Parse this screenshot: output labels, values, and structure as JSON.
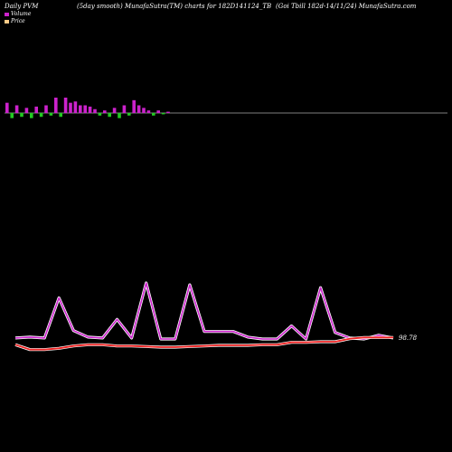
{
  "header": {
    "left": "Daily PVM",
    "middle": "(5day smooth) MunafaSutra(TM) charts for 182D141124_TB",
    "right": "(Goi  Tbill 182d-14/11/24) MunafaSutra.com"
  },
  "legend": {
    "items": [
      {
        "label": "Volume",
        "color": "#cc22cc"
      },
      {
        "label": "Price",
        "color": "#ffcc88"
      }
    ]
  },
  "colors": {
    "background": "#000000",
    "volume_up": "#cc22cc",
    "volume_down": "#22cc22",
    "volume_line": "#cc22cc",
    "price_line": "#ee2222",
    "axis_line": "#ffffff"
  },
  "price_label": "98.78",
  "chart_data": [
    {
      "type": "bar",
      "name": "volume-bars",
      "values": [
        8,
        -4,
        6,
        -3,
        4,
        -4,
        5,
        -3,
        6,
        -2,
        12,
        -3,
        12,
        8,
        9,
        6,
        6,
        5,
        3,
        -2,
        2,
        -3,
        4,
        -4,
        6,
        -2,
        10,
        6,
        4,
        2,
        -2,
        2,
        -1,
        1
      ],
      "ylim": [
        -12,
        12
      ]
    },
    {
      "type": "line",
      "series": [
        {
          "name": "Volume",
          "values": [
            2,
            3,
            2,
            45,
            10,
            3,
            2,
            22,
            2,
            61,
            1,
            1,
            59,
            9,
            9,
            9,
            3,
            1,
            1,
            15,
            1,
            56,
            8,
            2,
            1,
            5,
            2
          ]
        },
        {
          "name": "Price",
          "values": [
            98.6,
            98.56,
            98.56,
            98.57,
            98.59,
            98.6,
            98.6,
            98.59,
            98.59,
            98.585,
            98.58,
            98.58,
            98.585,
            98.59,
            98.595,
            98.595,
            98.595,
            98.6,
            98.6,
            98.62,
            98.62,
            98.625,
            98.625,
            98.65,
            98.66,
            98.66,
            98.66
          ]
        }
      ],
      "ylim": [
        0,
        100
      ]
    }
  ]
}
